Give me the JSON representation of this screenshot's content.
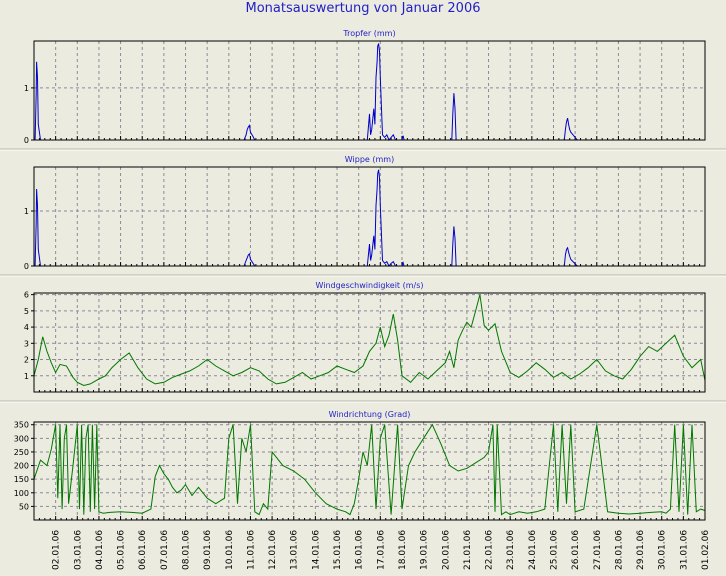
{
  "title": "Monatsauswertung von Januar 2006",
  "colors": {
    "rain": "#0000cc",
    "wind": "#007700",
    "title": "#1f1fc8",
    "grid": "#8a8a96"
  },
  "x_labels": [
    "02.01.06",
    "03.01.06",
    "04.01.06",
    "05.01.06",
    "06.01.06",
    "07.01.06",
    "08.01.06",
    "09.01.06",
    "10.01.06",
    "11.01.06",
    "12.01.06",
    "13.01.06",
    "14.01.06",
    "15.01.06",
    "16.01.06",
    "17.01.06",
    "18.01.06",
    "19.01.06",
    "20.01.06",
    "21.01.06",
    "22.01.06",
    "23.01.06",
    "24.01.06",
    "25.01.06",
    "26.01.06",
    "27.01.06",
    "28.01.06",
    "29.01.06",
    "30.01.06",
    "31.01.06",
    "01.02.06"
  ],
  "chart_data": [
    {
      "type": "line",
      "title": "Tropfer (mm)",
      "ylim": [
        0,
        1.9
      ],
      "yticks": [
        "0",
        "1"
      ],
      "ytick_values": [
        0,
        1
      ],
      "color": "#0000cc",
      "x": [
        0.05,
        0.1,
        0.12,
        0.16,
        0.2,
        0.3,
        9.7,
        9.8,
        9.85,
        9.9,
        9.95,
        10.0,
        10.1,
        10.2,
        15.4,
        15.5,
        15.55,
        15.6,
        15.7,
        15.75,
        15.8,
        15.85,
        15.88,
        15.92,
        15.96,
        16.0,
        16.1,
        16.2,
        16.3,
        16.4,
        16.5,
        16.6,
        16.7,
        17.0,
        17.05,
        17.1,
        17.2,
        17.5,
        19.3,
        19.35,
        19.4,
        19.45,
        19.5,
        24.5,
        24.55,
        24.6,
        24.65,
        24.7,
        24.75,
        24.8,
        24.9,
        25.0,
        25.1
      ],
      "y": [
        0,
        0.9,
        1.5,
        1.2,
        0.3,
        0,
        0,
        0.1,
        0.2,
        0.25,
        0.28,
        0.15,
        0.08,
        0,
        0,
        0.5,
        0.1,
        0.2,
        0.6,
        0.3,
        1.2,
        1.5,
        1.8,
        1.85,
        1.7,
        1.2,
        0.1,
        0.05,
        0.1,
        0,
        0.05,
        0.1,
        0,
        0,
        0.08,
        0,
        0,
        0,
        0,
        0.5,
        0.9,
        0.6,
        0,
        0,
        0.2,
        0.35,
        0.42,
        0.3,
        0.2,
        0.15,
        0.1,
        0.05,
        0
      ]
    },
    {
      "type": "line",
      "title": "Wippe (mm)",
      "ylim": [
        0,
        1.8
      ],
      "yticks": [
        "0",
        "1"
      ],
      "ytick_values": [
        0,
        1
      ],
      "color": "#0000cc",
      "x": [
        0.05,
        0.1,
        0.12,
        0.16,
        0.2,
        0.3,
        9.7,
        9.8,
        9.85,
        9.9,
        9.95,
        10.0,
        10.1,
        10.2,
        15.4,
        15.5,
        15.55,
        15.6,
        15.7,
        15.75,
        15.8,
        15.85,
        15.88,
        15.92,
        15.96,
        16.0,
        16.1,
        16.2,
        16.3,
        16.4,
        16.5,
        16.6,
        16.7,
        17.0,
        17.05,
        17.1,
        17.2,
        17.5,
        19.3,
        19.35,
        19.4,
        19.45,
        19.5,
        24.5,
        24.55,
        24.6,
        24.65,
        24.7,
        24.75,
        24.8,
        24.9,
        25.0,
        25.1
      ],
      "y": [
        0,
        0.8,
        1.4,
        1.1,
        0.3,
        0,
        0,
        0.1,
        0.15,
        0.2,
        0.22,
        0.12,
        0.06,
        0,
        0,
        0.4,
        0.1,
        0.2,
        0.55,
        0.3,
        1.1,
        1.4,
        1.68,
        1.75,
        1.6,
        1.1,
        0.1,
        0.05,
        0.08,
        0,
        0.05,
        0.08,
        0,
        0,
        0.06,
        0,
        0,
        0,
        0,
        0.4,
        0.72,
        0.5,
        0,
        0,
        0.2,
        0.3,
        0.33,
        0.25,
        0.18,
        0.12,
        0.08,
        0.04,
        0
      ]
    },
    {
      "type": "line",
      "title": "Windgeschwindigkeit (m/s)",
      "ylim": [
        0,
        6.1
      ],
      "yticks": [
        "1",
        "2",
        "3",
        "4",
        "5",
        "6"
      ],
      "ytick_values": [
        1,
        2,
        3,
        4,
        5,
        6
      ],
      "color": "#007700",
      "x": [
        0,
        0.2,
        0.4,
        0.6,
        0.8,
        1.0,
        1.2,
        1.5,
        1.8,
        2.0,
        2.3,
        2.6,
        3.0,
        3.3,
        3.6,
        4.0,
        4.4,
        4.8,
        5.2,
        5.6,
        6.0,
        6.4,
        6.8,
        7.2,
        7.6,
        8.0,
        8.4,
        8.8,
        9.2,
        9.6,
        10.0,
        10.4,
        10.8,
        11.2,
        11.6,
        12.0,
        12.4,
        12.8,
        13.2,
        13.6,
        14.0,
        14.4,
        14.8,
        15.2,
        15.5,
        15.8,
        16.0,
        16.2,
        16.4,
        16.6,
        16.8,
        17.0,
        17.4,
        17.8,
        18.2,
        18.6,
        19.0,
        19.2,
        19.4,
        19.6,
        19.8,
        20.0,
        20.2,
        20.4,
        20.6,
        20.8,
        21.0,
        21.3,
        21.6,
        22.0,
        22.4,
        22.8,
        23.2,
        23.6,
        24.0,
        24.4,
        24.8,
        25.2,
        25.6,
        26.0,
        26.4,
        26.8,
        27.2,
        27.6,
        28.0,
        28.4,
        28.8,
        29.2,
        29.6,
        30.0,
        30.4,
        30.8,
        31.0
      ],
      "y": [
        1.0,
        2.0,
        3.4,
        2.5,
        1.8,
        1.2,
        1.7,
        1.6,
        0.9,
        0.6,
        0.4,
        0.5,
        0.8,
        1.0,
        1.5,
        2.0,
        2.4,
        1.5,
        0.8,
        0.5,
        0.6,
        0.9,
        1.1,
        1.3,
        1.6,
        2.0,
        1.6,
        1.3,
        1.0,
        1.2,
        1.5,
        1.3,
        0.8,
        0.5,
        0.6,
        0.9,
        1.2,
        0.8,
        1.0,
        1.2,
        1.6,
        1.4,
        1.2,
        1.6,
        2.5,
        3.0,
        4.0,
        2.8,
        3.5,
        4.8,
        3.2,
        1.0,
        0.6,
        1.2,
        0.8,
        1.3,
        1.8,
        2.5,
        1.5,
        3.2,
        3.8,
        4.3,
        4.0,
        5.0,
        6.0,
        4.1,
        3.8,
        4.2,
        2.5,
        1.2,
        0.9,
        1.3,
        1.8,
        1.4,
        0.9,
        1.2,
        0.8,
        1.1,
        1.5,
        2.0,
        1.3,
        1.0,
        0.8,
        1.4,
        2.2,
        2.8,
        2.5,
        3.0,
        3.5,
        2.2,
        1.5,
        2.0,
        0.7
      ]
    },
    {
      "type": "line",
      "title": "Windrichtung (Grad)",
      "ylim": [
        0,
        360
      ],
      "yticks": [
        "50",
        "100",
        "150",
        "200",
        "250",
        "300",
        "350"
      ],
      "ytick_values": [
        50,
        100,
        150,
        200,
        250,
        300,
        350
      ],
      "color": "#007700",
      "x": [
        0,
        0.3,
        0.6,
        0.8,
        1.0,
        1.1,
        1.2,
        1.3,
        1.4,
        1.5,
        1.6,
        1.8,
        2.0,
        2.1,
        2.2,
        2.3,
        2.4,
        2.5,
        2.6,
        2.7,
        2.8,
        2.9,
        3.0,
        3.2,
        3.5,
        4.0,
        4.5,
        5.0,
        5.4,
        5.6,
        5.8,
        6.0,
        6.2,
        6.4,
        6.6,
        6.8,
        7.0,
        7.3,
        7.6,
        8.0,
        8.4,
        8.8,
        9.0,
        9.2,
        9.4,
        9.6,
        9.8,
        10.0,
        10.2,
        10.4,
        10.6,
        10.8,
        11.0,
        11.5,
        12.0,
        12.5,
        13.0,
        13.5,
        14.0,
        14.4,
        14.6,
        14.8,
        15.0,
        15.2,
        15.4,
        15.6,
        15.8,
        16.0,
        16.2,
        16.5,
        16.8,
        17.0,
        17.3,
        17.6,
        18.0,
        18.4,
        18.8,
        19.2,
        19.6,
        20.0,
        20.4,
        20.8,
        21.0,
        21.1,
        21.2,
        21.3,
        21.4,
        21.6,
        21.8,
        22.0,
        22.4,
        22.8,
        23.2,
        23.6,
        24.0,
        24.2,
        24.4,
        24.6,
        24.8,
        25.0,
        25.4,
        26.0,
        26.5,
        27.0,
        27.5,
        28.0,
        28.5,
        29.0,
        29.2,
        29.4,
        29.6,
        29.8,
        30.0,
        30.2,
        30.4,
        30.6,
        30.8,
        31.0
      ],
      "y": [
        150,
        220,
        200,
        260,
        350,
        80,
        350,
        40,
        300,
        350,
        60,
        200,
        350,
        40,
        350,
        20,
        300,
        350,
        30,
        350,
        40,
        350,
        30,
        25,
        28,
        30,
        28,
        25,
        40,
        160,
        200,
        170,
        150,
        120,
        100,
        110,
        130,
        90,
        120,
        80,
        60,
        80,
        300,
        350,
        60,
        300,
        250,
        350,
        30,
        20,
        60,
        40,
        250,
        200,
        180,
        150,
        100,
        60,
        40,
        30,
        20,
        60,
        150,
        250,
        200,
        350,
        40,
        300,
        350,
        20,
        350,
        40,
        200,
        250,
        300,
        350,
        280,
        200,
        180,
        190,
        210,
        230,
        250,
        300,
        350,
        30,
        350,
        20,
        30,
        20,
        30,
        25,
        30,
        40,
        350,
        30,
        350,
        60,
        350,
        30,
        40,
        350,
        30,
        25,
        22,
        25,
        28,
        30,
        25,
        40,
        350,
        30,
        350,
        20,
        350,
        30,
        40,
        35
      ]
    }
  ]
}
